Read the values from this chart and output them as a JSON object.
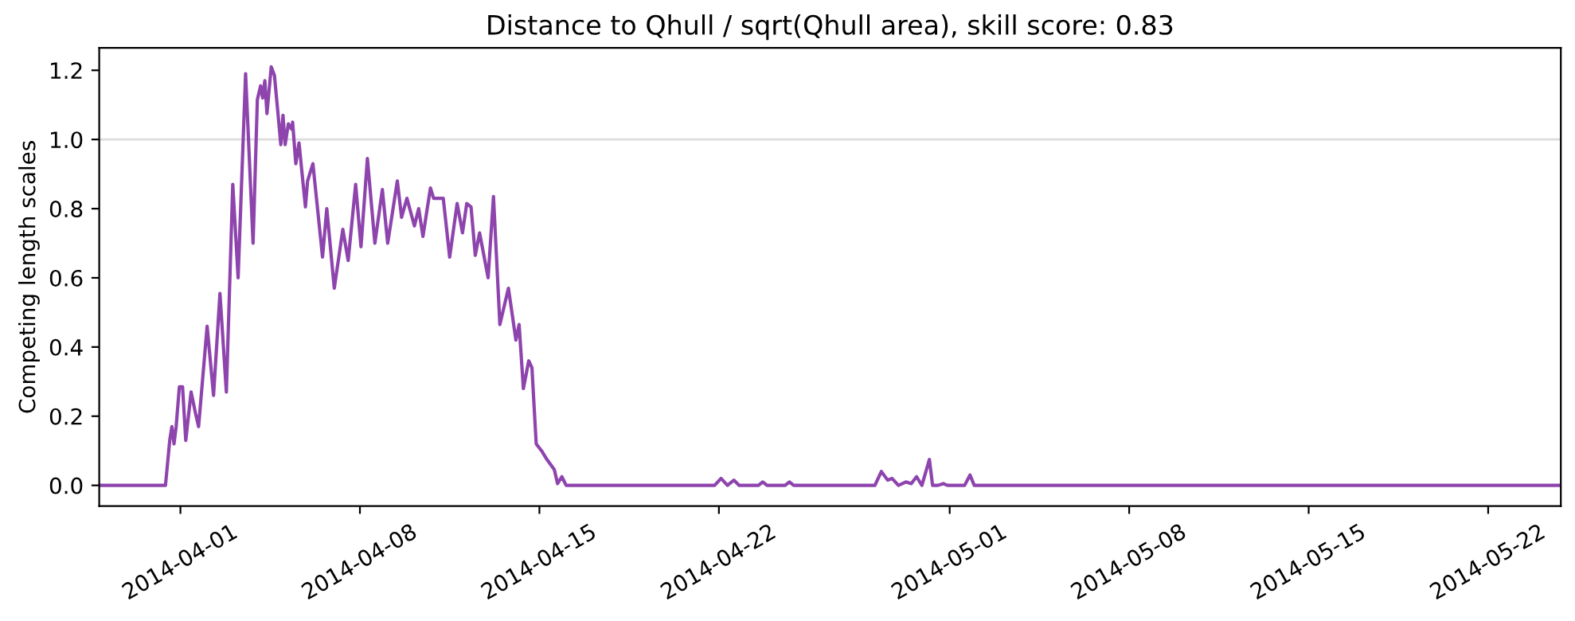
{
  "chart_data": {
    "type": "line",
    "title": "Distance to Qhull / sqrt(Qhull area), skill score: 0.83",
    "ylabel": "Competing length scales",
    "xlim": [
      "2014-03-28T20:00",
      "2014-05-24T20:00"
    ],
    "xticks": [
      "2014-04-01",
      "2014-04-08",
      "2014-04-15",
      "2014-04-22",
      "2014-05-01",
      "2014-05-08",
      "2014-05-15",
      "2014-05-22"
    ],
    "ylim": [
      -0.06,
      1.265
    ],
    "yticks": [
      {
        "value": 0,
        "label": "0.0"
      },
      {
        "value": 0.2,
        "label": "0.2"
      },
      {
        "value": 0.4,
        "label": "0.4"
      },
      {
        "value": 0.6,
        "label": "0.6"
      },
      {
        "value": 0.8,
        "label": "0.8"
      },
      {
        "value": 1.0,
        "label": "1.0"
      },
      {
        "value": 1.2,
        "label": "1.2"
      }
    ],
    "grid": false,
    "legend": false,
    "marker": "none",
    "line_style": "solid",
    "ref_lines": [
      {
        "axis": "y",
        "value": 1.0,
        "color": "#dcdcdc"
      }
    ],
    "series": [
      {
        "color": "#8e44ad",
        "x": [
          "2014-03-28T20:00",
          "2014-03-31T10:00",
          "2014-03-31T14:00",
          "2014-03-31T16:00",
          "2014-03-31T18:00",
          "2014-03-31T20:00",
          "2014-03-31T23:00",
          "2014-04-01T02:00",
          "2014-04-01T05:00",
          "2014-04-01T10:00",
          "2014-04-01T14:00",
          "2014-04-01T17:00",
          "2014-04-02T01:00",
          "2014-04-02T07:00",
          "2014-04-02T13:00",
          "2014-04-02T19:00",
          "2014-04-03T01:00",
          "2014-04-03T06:00",
          "2014-04-03T13:00",
          "2014-04-03T20:00",
          "2014-04-04T00:00",
          "2014-04-04T03:00",
          "2014-04-04T05:00",
          "2014-04-04T07:00",
          "2014-04-04T09:00",
          "2014-04-04T13:00",
          "2014-04-04T16:00",
          "2014-04-04T22:00",
          "2014-04-05T00:00",
          "2014-04-05T02:00",
          "2014-04-05T05:00",
          "2014-04-05T08:00",
          "2014-04-05T09:00",
          "2014-04-05T12:00",
          "2014-04-05T15:00",
          "2014-04-05T21:00",
          "2014-04-05T23:00",
          "2014-04-06T04:00",
          "2014-04-06T13:00",
          "2014-04-06T17:00",
          "2014-04-07T00:00",
          "2014-04-07T08:00",
          "2014-04-07T13:00",
          "2014-04-07T20:00",
          "2014-04-08T01:00",
          "2014-04-08T07:00",
          "2014-04-08T14:00",
          "2014-04-08T21:00",
          "2014-04-09T02:00",
          "2014-04-09T11:00",
          "2014-04-09T15:00",
          "2014-04-09T20:00",
          "2014-04-10T03:00",
          "2014-04-10T07:00",
          "2014-04-10T11:00",
          "2014-04-10T18:00",
          "2014-04-10T21:00",
          "2014-04-11T06:00",
          "2014-04-11T12:00",
          "2014-04-11T19:00",
          "2014-04-12T00:00",
          "2014-04-12T04:00",
          "2014-04-12T08:00",
          "2014-04-12T12:00",
          "2014-04-12T16:00",
          "2014-04-13T00:00",
          "2014-04-13T05:00",
          "2014-04-13T11:00",
          "2014-04-13T19:00",
          "2014-04-14T02:00",
          "2014-04-14T05:00",
          "2014-04-14T09:00",
          "2014-04-14T14:00",
          "2014-04-14T17:00",
          "2014-04-14T21:00",
          "2014-04-15T02:00",
          "2014-04-15T07:00",
          "2014-04-15T14:00",
          "2014-04-15T17:00",
          "2014-04-15T21:00",
          "2014-04-16T01:00",
          "2014-04-21T20:00",
          "2014-04-22T02:00",
          "2014-04-22T08:00",
          "2014-04-22T14:00",
          "2014-04-22T19:00",
          "2014-04-23T13:00",
          "2014-04-23T17:00",
          "2014-04-23T21:00",
          "2014-04-24T14:00",
          "2014-04-24T18:00",
          "2014-04-24T22:00",
          "2014-04-28T02:00",
          "2014-04-28T08:00",
          "2014-04-28T14:00",
          "2014-04-28T18:00",
          "2014-04-29T00:00",
          "2014-04-29T07:00",
          "2014-04-29T12:00",
          "2014-04-29T17:00",
          "2014-04-29T22:00",
          "2014-04-30T05:00",
          "2014-04-30T08:00",
          "2014-04-30T13:00",
          "2014-04-30T18:00",
          "2014-04-30T22:00",
          "2014-05-01T14:00",
          "2014-05-01T19:00",
          "2014-05-01T23:00",
          "2014-05-24T20:00"
        ],
        "values": [
          0,
          0,
          0.13,
          0.17,
          0.12,
          0.17,
          0.285,
          0.285,
          0.13,
          0.27,
          0.21,
          0.17,
          0.46,
          0.26,
          0.555,
          0.27,
          0.87,
          0.6,
          1.19,
          0.7,
          1.115,
          1.155,
          1.12,
          1.17,
          1.075,
          1.21,
          1.185,
          0.985,
          1.07,
          0.985,
          1.045,
          1.03,
          1.05,
          0.93,
          0.99,
          0.805,
          0.88,
          0.93,
          0.66,
          0.8,
          0.57,
          0.74,
          0.65,
          0.87,
          0.69,
          0.945,
          0.7,
          0.855,
          0.7,
          0.88,
          0.775,
          0.83,
          0.75,
          0.8,
          0.72,
          0.86,
          0.83,
          0.83,
          0.66,
          0.815,
          0.73,
          0.815,
          0.805,
          0.665,
          0.73,
          0.6,
          0.835,
          0.465,
          0.57,
          0.42,
          0.465,
          0.28,
          0.36,
          0.34,
          0.12,
          0.1,
          0.075,
          0.045,
          0.005,
          0.025,
          0,
          0,
          0.02,
          0,
          0.015,
          0,
          0,
          0.01,
          0,
          0,
          0.01,
          0,
          0,
          0.04,
          0.015,
          0.02,
          0,
          0.01,
          0.005,
          0.025,
          0,
          0.075,
          0,
          0,
          0.005,
          0,
          0,
          0.03,
          0,
          0
        ]
      }
    ]
  }
}
